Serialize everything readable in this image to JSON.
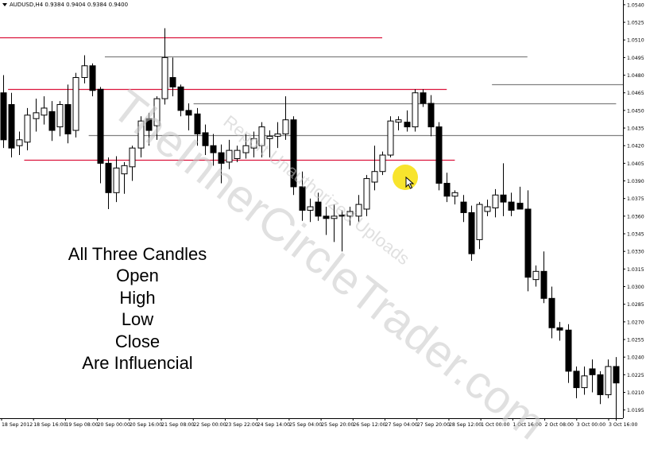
{
  "header": {
    "symbol_line": "AUDUSD,H4  0.9384 0.9404 0.9384 0.9400"
  },
  "caption": [
    "All Three Candles",
    "Open",
    "High",
    "Low",
    "Close",
    "Are Influencial"
  ],
  "watermark": {
    "main": "TheInnerCircleTrader.com",
    "sub": "Report Unauthorized Uploads"
  },
  "icons": {
    "cursor": "arrow-cursor-icon",
    "highlight": "cursor-highlight-circle",
    "dropdown": "dropdown-triangle-icon"
  },
  "colors": {
    "bull": "#ffffff",
    "bear": "#000000",
    "red_level": "#dc143c",
    "gray_level": "#808080",
    "highlight": "#f7e21b"
  },
  "chart_data": {
    "type": "candlestick",
    "symbol": "AUDUSD",
    "timeframe": "H4",
    "ylim": [
      1.0188,
      1.0544
    ],
    "y_ticks": [
      "1.0540",
      "1.0525",
      "1.0510",
      "1.0495",
      "1.0480",
      "1.0465",
      "1.0450",
      "1.0435",
      "1.0420",
      "1.0405",
      "1.0390",
      "1.0375",
      "1.0360",
      "1.0345",
      "1.0330",
      "1.0315",
      "1.0300",
      "1.0285",
      "1.0270",
      "1.0255",
      "1.0240",
      "1.0225",
      "1.0210",
      "1.0195"
    ],
    "x_labels": [
      "18 Sep 2012",
      "18 Sep 16:00",
      "19 Sep 08:00",
      "20 Sep 00:00",
      "20 Sep 16:00",
      "21 Sep 08:00",
      "22 Sep 00:00",
      "23 Sep 22:00",
      "24 Sep 14:00",
      "25 Sep 04:00",
      "25 Sep 20:00",
      "26 Sep 12:00",
      "27 Sep 04:00",
      "27 Sep 20:00",
      "28 Sep 12:00",
      "1 Oct 00:00",
      "1 Oct 16:00",
      "2 Oct 08:00",
      "3 Oct 00:00",
      "3 Oct 16:00"
    ],
    "candles": [
      {
        "o": 1.0465,
        "h": 1.048,
        "l": 1.0418,
        "c": 1.0425
      },
      {
        "o": 1.0455,
        "h": 1.0465,
        "l": 1.041,
        "c": 1.0418
      },
      {
        "o": 1.042,
        "h": 1.0432,
        "l": 1.0412,
        "c": 1.0425
      },
      {
        "o": 1.0423,
        "h": 1.0452,
        "l": 1.0416,
        "c": 1.0446
      },
      {
        "o": 1.0443,
        "h": 1.046,
        "l": 1.0432,
        "c": 1.0448
      },
      {
        "o": 1.0446,
        "h": 1.0462,
        "l": 1.0438,
        "c": 1.0452
      },
      {
        "o": 1.0449,
        "h": 1.0458,
        "l": 1.0424,
        "c": 1.0433
      },
      {
        "o": 1.0436,
        "h": 1.0458,
        "l": 1.0428,
        "c": 1.0455
      },
      {
        "o": 1.0455,
        "h": 1.0472,
        "l": 1.0422,
        "c": 1.043
      },
      {
        "o": 1.0433,
        "h": 1.0482,
        "l": 1.0427,
        "c": 1.0478
      },
      {
        "o": 1.0478,
        "h": 1.0497,
        "l": 1.0473,
        "c": 1.0488
      },
      {
        "o": 1.0488,
        "h": 1.049,
        "l": 1.0462,
        "c": 1.0467
      },
      {
        "o": 1.0468,
        "h": 1.047,
        "l": 1.0388,
        "c": 1.0405
      },
      {
        "o": 1.0405,
        "h": 1.041,
        "l": 1.0366,
        "c": 1.038
      },
      {
        "o": 1.038,
        "h": 1.0411,
        "l": 1.0372,
        "c": 1.0401
      },
      {
        "o": 1.0396,
        "h": 1.0406,
        "l": 1.0379,
        "c": 1.0403
      },
      {
        "o": 1.0402,
        "h": 1.042,
        "l": 1.039,
        "c": 1.0418
      },
      {
        "o": 1.0418,
        "h": 1.0445,
        "l": 1.041,
        "c": 1.0441
      },
      {
        "o": 1.0443,
        "h": 1.0448,
        "l": 1.042,
        "c": 1.0433
      },
      {
        "o": 1.0437,
        "h": 1.0462,
        "l": 1.0425,
        "c": 1.046
      },
      {
        "o": 1.046,
        "h": 1.052,
        "l": 1.0455,
        "c": 1.0495
      },
      {
        "o": 1.0478,
        "h": 1.0495,
        "l": 1.0462,
        "c": 1.047
      },
      {
        "o": 1.047,
        "h": 1.0472,
        "l": 1.0445,
        "c": 1.045
      },
      {
        "o": 1.045,
        "h": 1.0456,
        "l": 1.0433,
        "c": 1.0446
      },
      {
        "o": 1.0447,
        "h": 1.0452,
        "l": 1.042,
        "c": 1.043
      },
      {
        "o": 1.0431,
        "h": 1.0438,
        "l": 1.0412,
        "c": 1.042
      },
      {
        "o": 1.042,
        "h": 1.043,
        "l": 1.0403,
        "c": 1.0414
      },
      {
        "o": 1.0414,
        "h": 1.0421,
        "l": 1.0388,
        "c": 1.0405
      },
      {
        "o": 1.0406,
        "h": 1.0425,
        "l": 1.04,
        "c": 1.0416
      },
      {
        "o": 1.0409,
        "h": 1.042,
        "l": 1.0406,
        "c": 1.0416
      },
      {
        "o": 1.0414,
        "h": 1.043,
        "l": 1.0409,
        "c": 1.042
      },
      {
        "o": 1.0418,
        "h": 1.0432,
        "l": 1.041,
        "c": 1.0426
      },
      {
        "o": 1.042,
        "h": 1.044,
        "l": 1.041,
        "c": 1.0436
      },
      {
        "o": 1.0426,
        "h": 1.0433,
        "l": 1.041,
        "c": 1.0428
      },
      {
        "o": 1.0428,
        "h": 1.044,
        "l": 1.0418,
        "c": 1.043
      },
      {
        "o": 1.043,
        "h": 1.0462,
        "l": 1.0425,
        "c": 1.0442
      },
      {
        "o": 1.0442,
        "h": 1.0445,
        "l": 1.0378,
        "c": 1.0385
      },
      {
        "o": 1.0385,
        "h": 1.0398,
        "l": 1.0356,
        "c": 1.0365
      },
      {
        "o": 1.0365,
        "h": 1.0375,
        "l": 1.0355,
        "c": 1.0368
      },
      {
        "o": 1.0372,
        "h": 1.038,
        "l": 1.0356,
        "c": 1.036
      },
      {
        "o": 1.036,
        "h": 1.0368,
        "l": 1.0344,
        "c": 1.0358
      },
      {
        "o": 1.0358,
        "h": 1.037,
        "l": 1.0338,
        "c": 1.036
      },
      {
        "o": 1.0361,
        "h": 1.0365,
        "l": 1.033,
        "c": 1.036
      },
      {
        "o": 1.036,
        "h": 1.0368,
        "l": 1.0352,
        "c": 1.0364
      },
      {
        "o": 1.036,
        "h": 1.0378,
        "l": 1.0355,
        "c": 1.037
      },
      {
        "o": 1.0366,
        "h": 1.0395,
        "l": 1.036,
        "c": 1.0392
      },
      {
        "o": 1.0389,
        "h": 1.042,
        "l": 1.0382,
        "c": 1.0398
      },
      {
        "o": 1.0398,
        "h": 1.0415,
        "l": 1.0395,
        "c": 1.0412
      },
      {
        "o": 1.0412,
        "h": 1.0445,
        "l": 1.041,
        "c": 1.0441
      },
      {
        "o": 1.044,
        "h": 1.0445,
        "l": 1.0433,
        "c": 1.0442
      },
      {
        "o": 1.044,
        "h": 1.045,
        "l": 1.0432,
        "c": 1.0436
      },
      {
        "o": 1.0436,
        "h": 1.0468,
        "l": 1.0432,
        "c": 1.0465
      },
      {
        "o": 1.0465,
        "h": 1.0468,
        "l": 1.0453,
        "c": 1.0456
      },
      {
        "o": 1.0456,
        "h": 1.0463,
        "l": 1.0428,
        "c": 1.0436
      },
      {
        "o": 1.0436,
        "h": 1.044,
        "l": 1.0382,
        "c": 1.0388
      },
      {
        "o": 1.0388,
        "h": 1.0397,
        "l": 1.0372,
        "c": 1.0377
      },
      {
        "o": 1.0377,
        "h": 1.0382,
        "l": 1.037,
        "c": 1.038
      },
      {
        "o": 1.0372,
        "h": 1.0378,
        "l": 1.0355,
        "c": 1.0363
      },
      {
        "o": 1.0363,
        "h": 1.0369,
        "l": 1.0322,
        "c": 1.0328
      },
      {
        "o": 1.034,
        "h": 1.0372,
        "l": 1.0332,
        "c": 1.037
      },
      {
        "o": 1.0364,
        "h": 1.0374,
        "l": 1.036,
        "c": 1.0368
      },
      {
        "o": 1.0367,
        "h": 1.0383,
        "l": 1.0359,
        "c": 1.0378
      },
      {
        "o": 1.0378,
        "h": 1.0405,
        "l": 1.036,
        "c": 1.0372
      },
      {
        "o": 1.0372,
        "h": 1.038,
        "l": 1.036,
        "c": 1.0365
      },
      {
        "o": 1.0371,
        "h": 1.0385,
        "l": 1.0366,
        "c": 1.0366
      },
      {
        "o": 1.0366,
        "h": 1.0382,
        "l": 1.0296,
        "c": 1.0308
      },
      {
        "o": 1.0306,
        "h": 1.0318,
        "l": 1.03,
        "c": 1.0313
      },
      {
        "o": 1.0313,
        "h": 1.033,
        "l": 1.0286,
        "c": 1.029
      },
      {
        "o": 1.029,
        "h": 1.03,
        "l": 1.0256,
        "c": 1.0265
      },
      {
        "o": 1.0265,
        "h": 1.027,
        "l": 1.0254,
        "c": 1.0263
      },
      {
        "o": 1.0263,
        "h": 1.0268,
        "l": 1.0218,
        "c": 1.0228
      },
      {
        "o": 1.0228,
        "h": 1.0232,
        "l": 1.0205,
        "c": 1.0214
      },
      {
        "o": 1.0214,
        "h": 1.0232,
        "l": 1.0208,
        "c": 1.0224
      },
      {
        "o": 1.023,
        "h": 1.0238,
        "l": 1.021,
        "c": 1.0225
      },
      {
        "o": 1.0225,
        "h": 1.0228,
        "l": 1.02,
        "c": 1.0208
      },
      {
        "o": 1.0208,
        "h": 1.0238,
        "l": 1.0205,
        "c": 1.0232
      },
      {
        "o": 1.0232,
        "h": 1.024,
        "l": 1.0186,
        "c": 1.0218
      }
    ],
    "levels": [
      {
        "price": 1.0512,
        "color": "red",
        "from": 0,
        "to": 47
      },
      {
        "price": 1.0468,
        "color": "red",
        "from": 1,
        "to": 55
      },
      {
        "price": 1.0408,
        "color": "red",
        "from": 3,
        "to": 56
      },
      {
        "price": 1.0496,
        "color": "gray",
        "from": 13,
        "to": 65
      },
      {
        "price": 1.0456,
        "color": "gray",
        "from": 24,
        "to": 76
      },
      {
        "price": 1.0429,
        "color": "gray",
        "from": 11,
        "to": null
      },
      {
        "price": 1.0472,
        "color": "gray",
        "from": 61,
        "to": null
      }
    ]
  }
}
